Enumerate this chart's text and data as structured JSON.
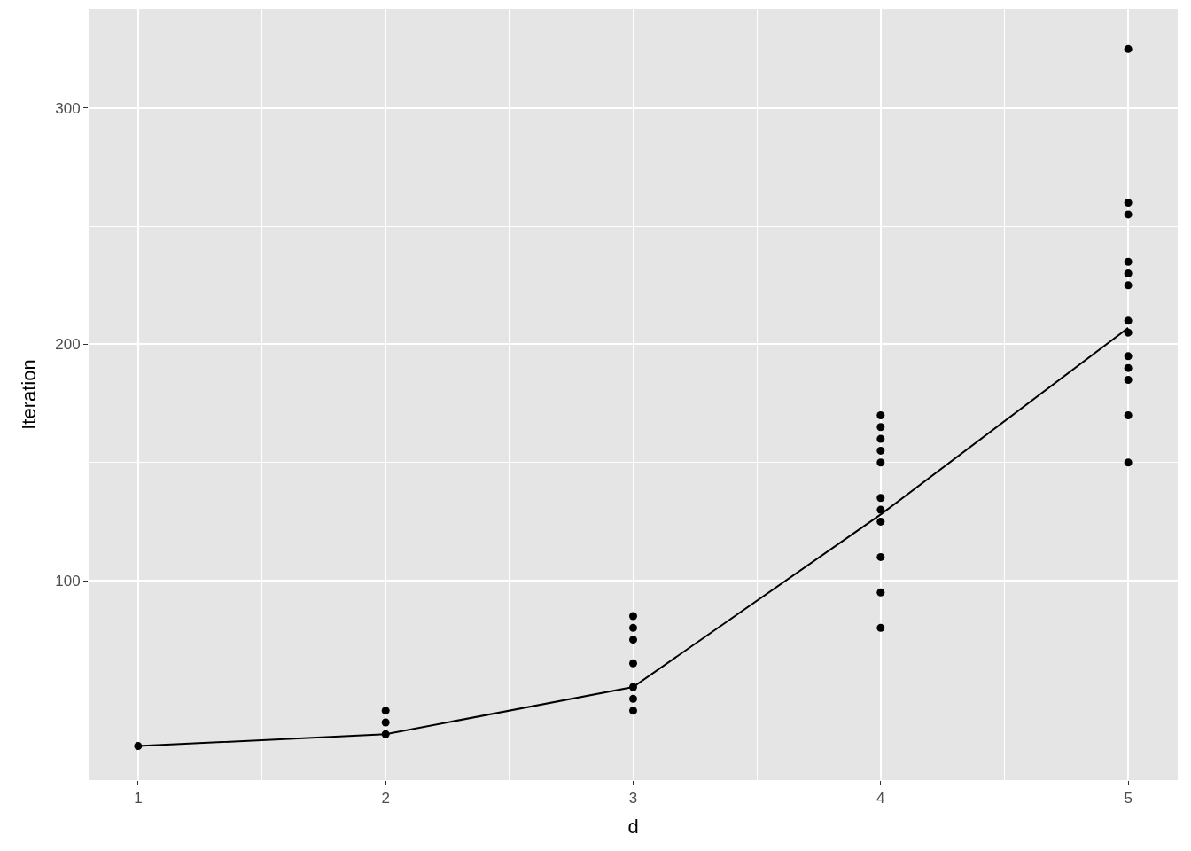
{
  "chart_data": {
    "type": "scatter",
    "xlabel": "d",
    "ylabel": "Iteration",
    "xlim": [
      0.8,
      5.2
    ],
    "ylim": [
      15.6,
      342
    ],
    "xticks": [
      1,
      2,
      3,
      4,
      5
    ],
    "yticks": [
      100,
      200,
      300
    ],
    "grid": true,
    "legend": false,
    "series": [
      {
        "marker": "circle",
        "color": "#000000",
        "x": [
          1,
          2,
          2,
          2,
          3,
          3,
          3,
          3,
          3,
          3,
          3,
          4,
          4,
          4,
          4,
          4,
          4,
          4,
          4,
          4,
          4,
          4,
          5,
          5,
          5,
          5,
          5,
          5,
          5,
          5,
          5,
          5,
          5,
          5,
          5
        ],
        "values": [
          30,
          45,
          40,
          35,
          85,
          80,
          75,
          65,
          55,
          50,
          45,
          170,
          165,
          160,
          155,
          150,
          135,
          130,
          125,
          110,
          95,
          80,
          325,
          260,
          255,
          235,
          230,
          225,
          210,
          205,
          195,
          190,
          185,
          170,
          150
        ]
      },
      {
        "type": "line",
        "marker": "none",
        "color": "#000000",
        "x": [
          1,
          2,
          3,
          4,
          5
        ],
        "values": [
          30,
          35,
          55,
          128,
          207
        ]
      }
    ]
  }
}
